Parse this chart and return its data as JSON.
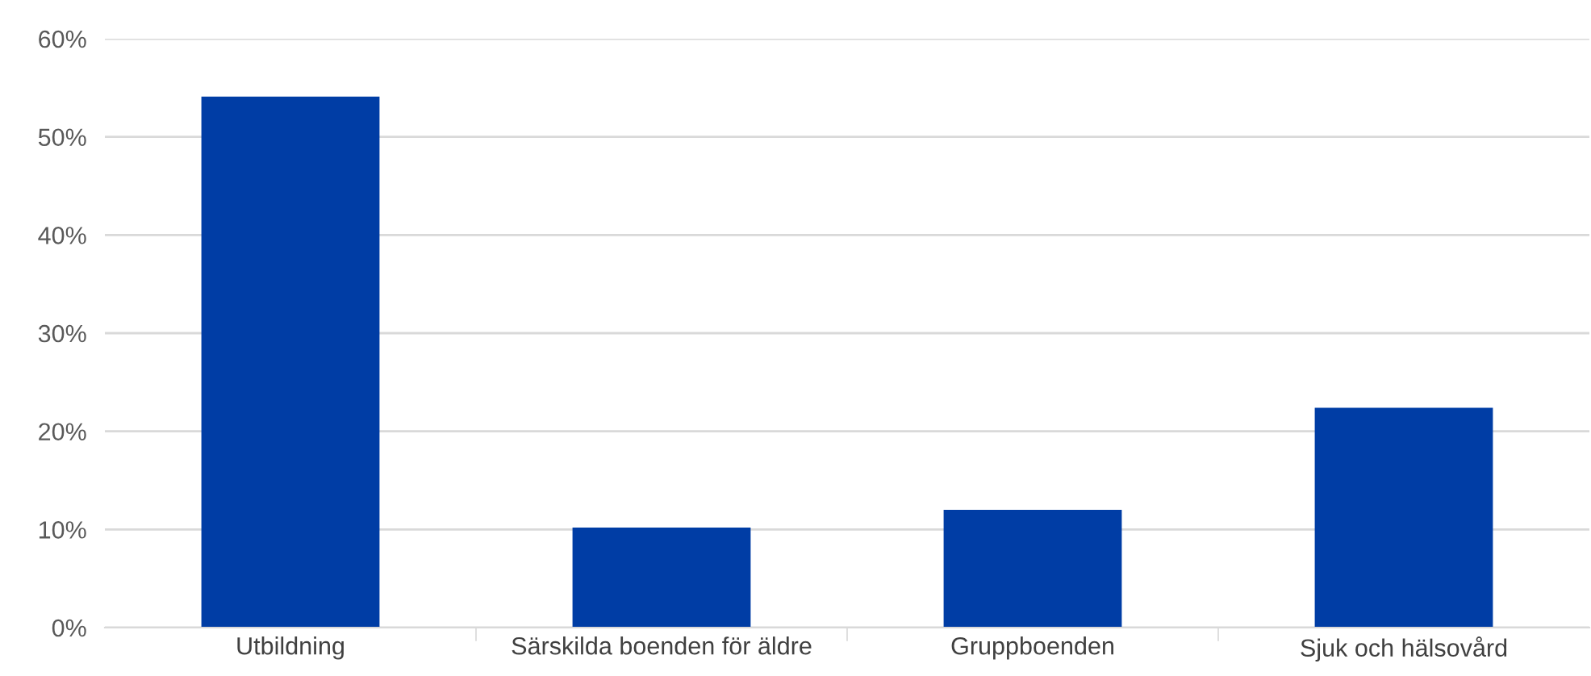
{
  "chart_data": {
    "type": "bar",
    "categories": [
      "Utbildning",
      "Särskilda boenden för äldre",
      "Gruppboenden",
      "Sjuk och hälsovård"
    ],
    "values": [
      54.1,
      10.2,
      12.0,
      22.4
    ],
    "color": "#003da5",
    "ylim": [
      0,
      60
    ],
    "yticks": [
      {
        "value": 0,
        "label": "0%"
      },
      {
        "value": 10,
        "label": "10%"
      },
      {
        "value": 20,
        "label": "20%"
      },
      {
        "value": 30,
        "label": "30%"
      },
      {
        "value": 40,
        "label": "40%"
      },
      {
        "value": 50,
        "label": "50%"
      },
      {
        "value": 60,
        "label": "60%"
      }
    ],
    "grid": "y"
  }
}
